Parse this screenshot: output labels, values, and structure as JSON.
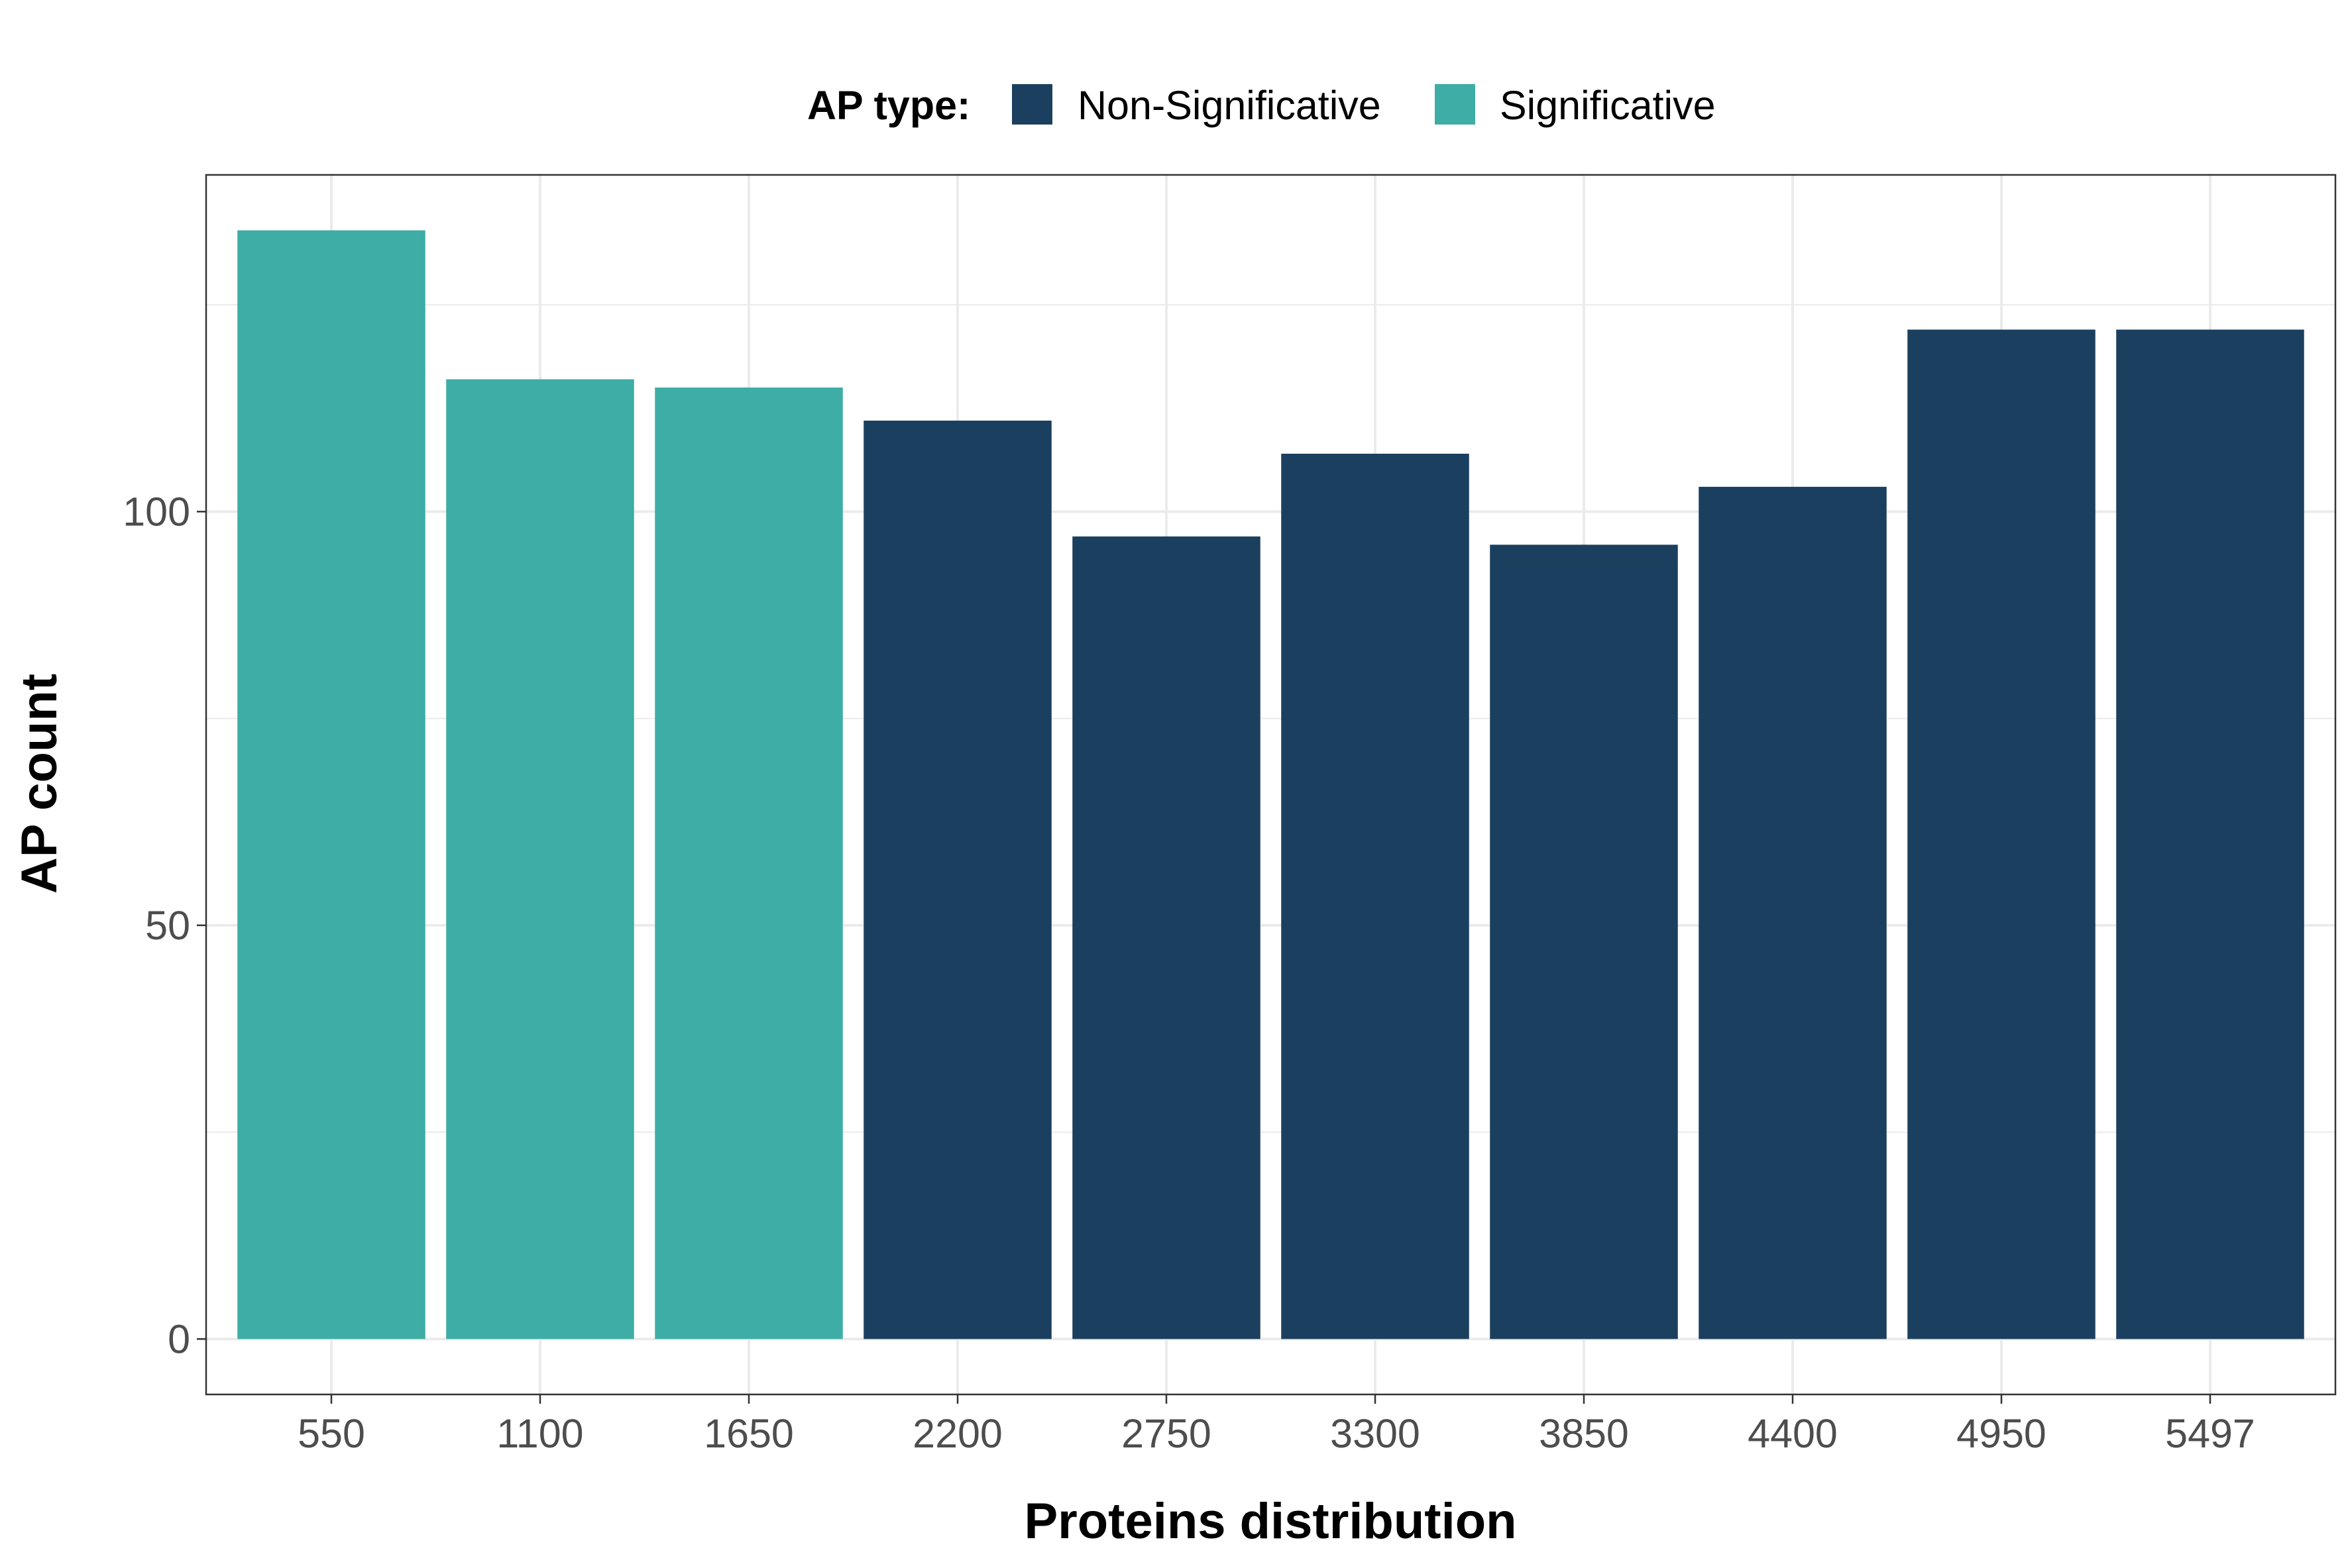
{
  "chart_data": {
    "type": "bar",
    "title": "",
    "xlabel": "Proteins distribution",
    "ylabel": "AP count",
    "categories": [
      "550",
      "1100",
      "1650",
      "2200",
      "2750",
      "3300",
      "3850",
      "4400",
      "4950",
      "5497"
    ],
    "values": [
      134,
      116,
      115,
      111,
      97,
      107,
      96,
      103,
      122,
      122
    ],
    "bar_types": [
      "Significative",
      "Significative",
      "Significative",
      "Non-Significative",
      "Non-Significative",
      "Non-Significative",
      "Non-Significative",
      "Non-Significative",
      "Non-Significative",
      "Non-Significative"
    ],
    "ylim": [
      -6.7,
      140.7
    ],
    "y_ticks": [
      0,
      50,
      100
    ],
    "y_minor_ticks": [
      25,
      75,
      125
    ],
    "grid": true,
    "legend": {
      "title": "AP type:",
      "placement": "top-center",
      "entries": [
        {
          "label": "Non-Significative",
          "color": "#1b3f5f"
        },
        {
          "label": "Significative",
          "color": "#3dada5"
        }
      ]
    },
    "colors": {
      "Non-Significative": "#1b3f5f",
      "Significative": "#3dada5",
      "grid": "#ebebeb",
      "panel_border": "#333333",
      "tick_text": "#4d4d4d"
    }
  }
}
